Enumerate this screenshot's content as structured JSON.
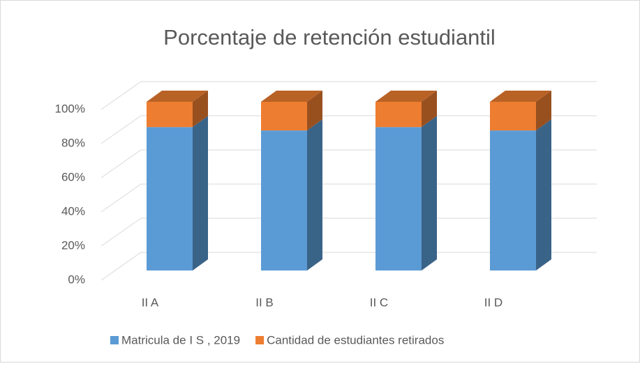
{
  "chart_data": {
    "type": "bar3d_stacked",
    "title": "Porcentaje de retención estudiantil",
    "categories": [
      "II A",
      "II B",
      "II C",
      "II D"
    ],
    "series": [
      {
        "name": "Matricula de I S , 2019",
        "color": "#5b9bd5",
        "values": [
          85,
          83,
          85,
          83
        ]
      },
      {
        "name": "Cantidad de estudiantes retirados",
        "color": "#ed7d31",
        "values": [
          15,
          17,
          15,
          17
        ]
      }
    ],
    "ylim": [
      0,
      100
    ],
    "yticks": [
      {
        "value": 0,
        "label": "0%"
      },
      {
        "value": 20,
        "label": "20%"
      },
      {
        "value": 40,
        "label": "40%"
      },
      {
        "value": 60,
        "label": "60%"
      },
      {
        "value": 80,
        "label": "80%"
      },
      {
        "value": 100,
        "label": "100%"
      }
    ],
    "grid": true,
    "legend": "bottom"
  }
}
